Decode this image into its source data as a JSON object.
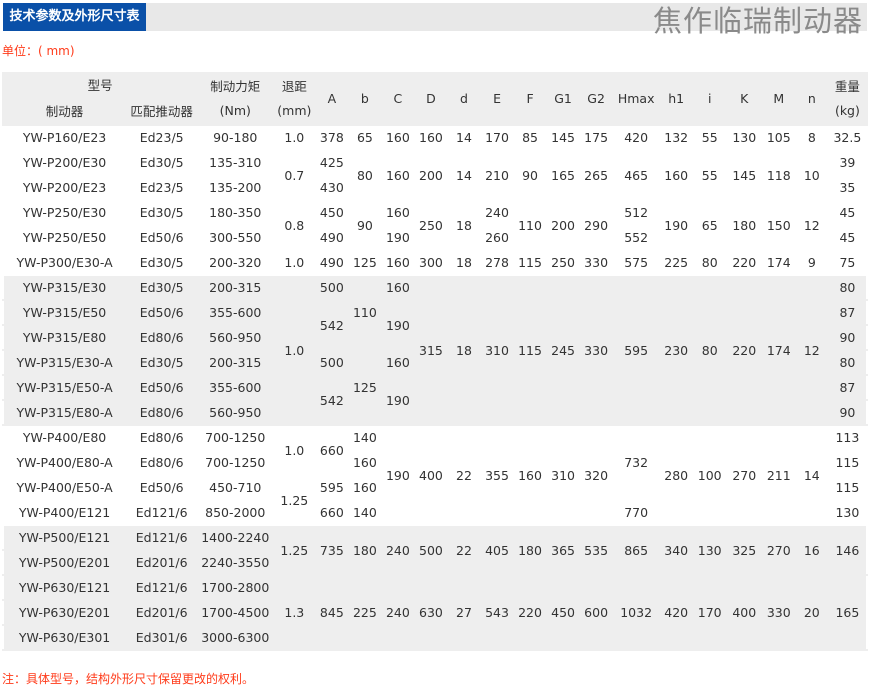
{
  "header": {
    "title": "技术参数及外形尺寸表",
    "brand": "焦作临瑞制动器"
  },
  "unit_label": "单位：( mm)",
  "note": "注：具体型号，结构外形尺寸保留更改的权利。",
  "colors": {
    "title_bg": "#0a50a8",
    "accent_text": "#ff3b1a",
    "shade": "#eeeeee"
  },
  "table": {
    "head": {
      "model_group": "型号",
      "brake": "制动器",
      "pusher": "匹配推动器",
      "torque": "制动力矩",
      "torque_unit": "(Nm)",
      "stroke": "退距",
      "stroke_unit": "(mm)",
      "dims": [
        "A",
        "b",
        "C",
        "D",
        "d",
        "E",
        "F",
        "G1",
        "G2",
        "Hmax",
        "h1",
        "i",
        "K",
        "M",
        "n"
      ],
      "weight": "重量",
      "weight_unit": "(kg)"
    },
    "rows": [
      {
        "shaded": false,
        "cells": [
          "YW-P160/E23",
          "Ed23/5",
          "90-180",
          "1.0",
          "378",
          "65",
          "160",
          "160",
          "14",
          "170",
          "85",
          "145",
          "175",
          "420",
          "132",
          "55",
          "130",
          "105",
          "8",
          "32.5"
        ]
      },
      {
        "shaded": false,
        "cells": [
          "YW-P200/E30",
          "Ed30/5",
          "135-310",
          [
            "0.7",
            2
          ],
          "425",
          [
            "80",
            2
          ],
          [
            "160",
            2
          ],
          [
            "200",
            2
          ],
          [
            "14",
            2
          ],
          [
            "210",
            2
          ],
          [
            "90",
            2
          ],
          [
            "165",
            2
          ],
          [
            "265",
            2
          ],
          [
            "465",
            2
          ],
          [
            "160",
            2
          ],
          [
            "55",
            2
          ],
          [
            "145",
            2
          ],
          [
            "118",
            2
          ],
          [
            "10",
            2
          ],
          "39"
        ]
      },
      {
        "shaded": false,
        "cells": [
          "YW-P200/E23",
          "Ed23/5",
          "135-200",
          "430",
          "35"
        ]
      },
      {
        "shaded": false,
        "cells": [
          "YW-P250/E30",
          "Ed30/5",
          "180-350",
          [
            "0.8",
            2
          ],
          "450",
          [
            "90",
            2
          ],
          "160",
          [
            "250",
            2
          ],
          [
            "18",
            2
          ],
          "240",
          [
            "110",
            2
          ],
          [
            "200",
            2
          ],
          [
            "290",
            2
          ],
          "512",
          [
            "190",
            2
          ],
          [
            "65",
            2
          ],
          [
            "180",
            2
          ],
          [
            "150",
            2
          ],
          [
            "12",
            2
          ],
          "45"
        ]
      },
      {
        "shaded": false,
        "cells": [
          "YW-P250/E50",
          "Ed50/6",
          "300-550",
          "490",
          "190",
          "260",
          "552",
          "45"
        ]
      },
      {
        "shaded": false,
        "cells": [
          "YW-P300/E30-A",
          "Ed30/5",
          "200-320",
          "1.0",
          "490",
          "125",
          "160",
          "300",
          "18",
          "278",
          "115",
          "250",
          "330",
          "575",
          "225",
          "80",
          "220",
          "174",
          "9",
          "75"
        ]
      },
      {
        "shaded": true,
        "cells": [
          "YW-P315/E30",
          "Ed30/5",
          "200-315",
          [
            "1.0",
            6
          ],
          "500",
          [
            "110",
            3
          ],
          "160",
          [
            "315",
            6
          ],
          [
            "18",
            6
          ],
          [
            "310",
            6
          ],
          [
            "115",
            6
          ],
          [
            "245",
            6
          ],
          [
            "330",
            6
          ],
          [
            "595",
            6
          ],
          [
            "230",
            6
          ],
          [
            "80",
            6
          ],
          [
            "220",
            6
          ],
          [
            "174",
            6
          ],
          [
            "12",
            6
          ],
          "80"
        ]
      },
      {
        "shaded": true,
        "cells": [
          "YW-P315/E50",
          "Ed50/6",
          "355-600",
          [
            "542",
            2
          ],
          [
            "190",
            2
          ],
          "87"
        ]
      },
      {
        "shaded": true,
        "cells": [
          "YW-P315/E80",
          "Ed80/6",
          "560-950",
          "90"
        ]
      },
      {
        "shaded": true,
        "cells": [
          "YW-P315/E30-A",
          "Ed30/5",
          "200-315",
          "500",
          [
            "125",
            3
          ],
          "160",
          "80"
        ]
      },
      {
        "shaded": true,
        "cells": [
          "YW-P315/E50-A",
          "Ed50/6",
          "355-600",
          [
            "542",
            2
          ],
          [
            "190",
            2
          ],
          "87"
        ]
      },
      {
        "shaded": true,
        "cells": [
          "YW-P315/E80-A",
          "Ed80/6",
          "560-950",
          "90"
        ]
      },
      {
        "shaded": false,
        "cells": [
          "YW-P400/E80",
          "Ed80/6",
          "700-1250",
          [
            "1.0",
            2
          ],
          [
            "660",
            2
          ],
          "140",
          [
            "190",
            4
          ],
          [
            "400",
            4
          ],
          [
            "22",
            4
          ],
          [
            "355",
            4
          ],
          [
            "160",
            4
          ],
          [
            "310",
            4
          ],
          [
            "320",
            4
          ],
          [
            "732",
            3
          ],
          [
            "280",
            4
          ],
          [
            "100",
            4
          ],
          [
            "270",
            4
          ],
          [
            "211",
            4
          ],
          [
            "14",
            4
          ],
          "113"
        ]
      },
      {
        "shaded": false,
        "cells": [
          "YW-P400/E80-A",
          "Ed80/6",
          "700-1250",
          "160",
          "115"
        ]
      },
      {
        "shaded": false,
        "cells": [
          "YW-P400/E50-A",
          "Ed50/6",
          "450-710",
          [
            "1.25",
            2
          ],
          "595",
          "160",
          "115"
        ]
      },
      {
        "shaded": false,
        "cells": [
          "YW-P400/E121",
          "Ed121/6",
          "850-2000",
          "660",
          "140",
          "770",
          "130"
        ]
      },
      {
        "shaded": true,
        "cells": [
          "YW-P500/E121",
          "Ed121/6",
          "1400-2240",
          [
            "1.25",
            2
          ],
          [
            "735",
            2
          ],
          [
            "180",
            2
          ],
          [
            "240",
            2
          ],
          [
            "500",
            2
          ],
          [
            "22",
            2
          ],
          [
            "405",
            2
          ],
          [
            "180",
            2
          ],
          [
            "365",
            2
          ],
          [
            "535",
            2
          ],
          [
            "865",
            2
          ],
          [
            "340",
            2
          ],
          [
            "130",
            2
          ],
          [
            "325",
            2
          ],
          [
            "270",
            2
          ],
          [
            "16",
            2
          ],
          [
            "146",
            2
          ]
        ]
      },
      {
        "shaded": true,
        "cells": [
          "YW-P500/E201",
          "Ed201/6",
          "2240-3550"
        ]
      },
      {
        "shaded": true,
        "cells": [
          "YW-P630/E121",
          "Ed121/6",
          "1700-2800",
          [
            "1.3",
            3
          ],
          [
            "845",
            3
          ],
          [
            "225",
            3
          ],
          [
            "240",
            3
          ],
          [
            "630",
            3
          ],
          [
            "27",
            3
          ],
          [
            "543",
            3
          ],
          [
            "220",
            3
          ],
          [
            "450",
            3
          ],
          [
            "600",
            3
          ],
          [
            "1032",
            3
          ],
          [
            "420",
            3
          ],
          [
            "170",
            3
          ],
          [
            "400",
            3
          ],
          [
            "330",
            3
          ],
          [
            "20",
            3
          ],
          [
            "165",
            3
          ]
        ]
      },
      {
        "shaded": true,
        "cells": [
          "YW-P630/E201",
          "Ed201/6",
          "1700-4500"
        ]
      },
      {
        "shaded": true,
        "cells": [
          "YW-P630/E301",
          "Ed301/6",
          "3000-6300"
        ]
      }
    ]
  }
}
